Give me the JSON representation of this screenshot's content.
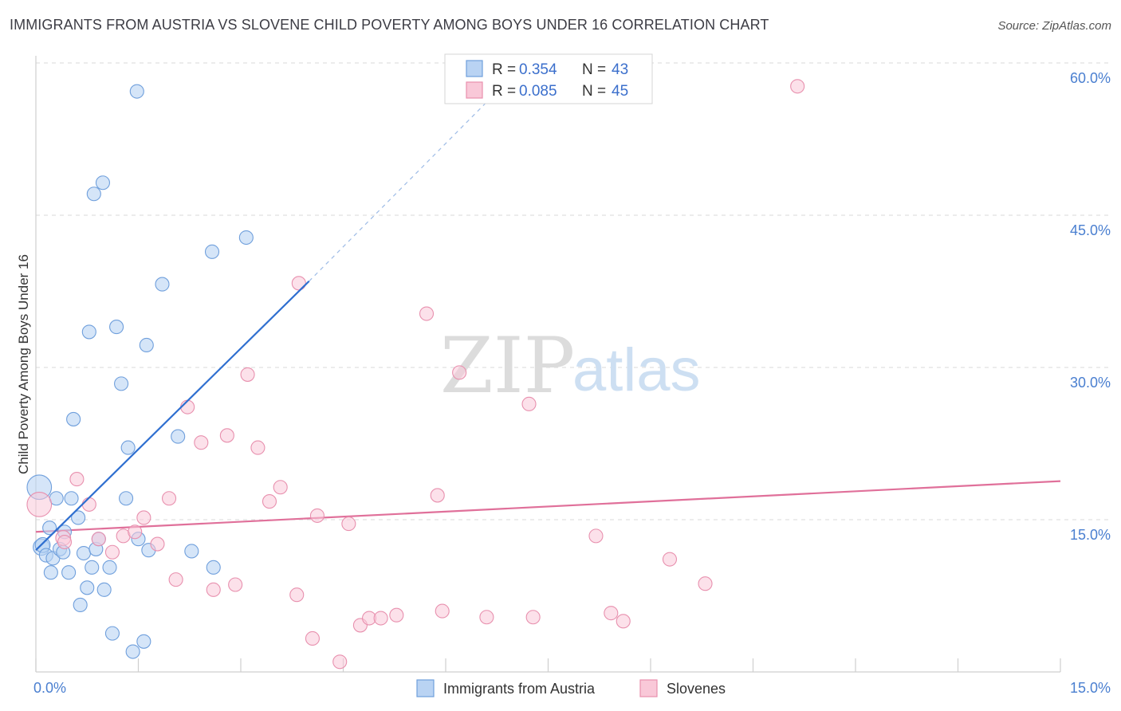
{
  "header": {
    "title": "IMMIGRANTS FROM AUSTRIA VS SLOVENE CHILD POVERTY AMONG BOYS UNDER 16 CORRELATION CHART",
    "source": "Source: ZipAtlas.com"
  },
  "watermark": {
    "zip": "ZIP",
    "atlas": "atlas"
  },
  "colors": {
    "blue_fill": "#b9d3f3",
    "blue_stroke": "#6f9fdc",
    "blue_line": "#2f6fd0",
    "pink_fill": "#f9c8d8",
    "pink_stroke": "#e890ae",
    "pink_line": "#e0709a",
    "grid": "#d9d9d9",
    "axis_text": "#4a7fd0"
  },
  "stats": {
    "r_label": "R =",
    "n_label": "N =",
    "austria": {
      "r": "0.354",
      "n": "43"
    },
    "slovenes": {
      "r": "0.085",
      "n": "45"
    }
  },
  "chart_data": {
    "type": "scatter",
    "title": "IMMIGRANTS FROM AUSTRIA VS SLOVENE CHILD POVERTY AMONG BOYS UNDER 16 CORRELATION CHART",
    "ylabel": "Child Poverty Among Boys Under 16",
    "xlabel": "",
    "xlim": [
      0,
      15
    ],
    "ylim": [
      0,
      60
    ],
    "x_tick_labels": [
      "0.0%",
      "15.0%"
    ],
    "y_ticks": [
      15,
      30,
      45,
      60
    ],
    "y_tick_labels": [
      "15.0%",
      "30.0%",
      "45.0%",
      "60.0%"
    ],
    "legend": [
      "Immigrants from Austria",
      "Slovenes"
    ],
    "series": [
      {
        "name": "Immigrants from Austria",
        "points": [
          [
            0.05,
            18.2,
            18
          ],
          [
            0.08,
            12.3,
            12
          ],
          [
            0.1,
            12.5,
            11
          ],
          [
            0.15,
            11.5,
            10
          ],
          [
            0.2,
            14.2,
            10
          ],
          [
            0.22,
            9.8,
            10
          ],
          [
            0.25,
            11.2,
            10
          ],
          [
            0.3,
            17.1,
            10
          ],
          [
            0.35,
            12.1,
            10
          ],
          [
            0.4,
            11.8,
            10
          ],
          [
            0.42,
            13.8,
            10
          ],
          [
            0.48,
            9.8,
            10
          ],
          [
            0.52,
            17.1,
            10
          ],
          [
            0.55,
            24.9,
            10
          ],
          [
            0.62,
            15.2,
            10
          ],
          [
            0.65,
            6.6,
            10
          ],
          [
            0.7,
            11.7,
            10
          ],
          [
            0.75,
            8.3,
            10
          ],
          [
            0.78,
            33.5,
            10
          ],
          [
            0.82,
            10.3,
            10
          ],
          [
            0.85,
            47.1,
            10
          ],
          [
            0.88,
            12.1,
            10
          ],
          [
            0.92,
            13.1,
            10
          ],
          [
            0.98,
            48.2,
            10
          ],
          [
            1.0,
            8.1,
            10
          ],
          [
            1.08,
            10.3,
            10
          ],
          [
            1.12,
            3.8,
            10
          ],
          [
            1.18,
            34.0,
            10
          ],
          [
            1.25,
            28.4,
            10
          ],
          [
            1.32,
            17.1,
            10
          ],
          [
            1.35,
            22.1,
            10
          ],
          [
            1.42,
            2.0,
            10
          ],
          [
            1.48,
            57.2,
            10
          ],
          [
            1.5,
            13.1,
            10
          ],
          [
            1.58,
            3.0,
            10
          ],
          [
            1.62,
            32.2,
            10
          ],
          [
            1.65,
            12.0,
            10
          ],
          [
            1.85,
            38.2,
            10
          ],
          [
            2.08,
            23.2,
            10
          ],
          [
            2.28,
            11.9,
            10
          ],
          [
            2.58,
            41.4,
            10
          ],
          [
            2.6,
            10.3,
            10
          ],
          [
            3.08,
            42.8,
            10
          ]
        ],
        "trend": {
          "from": [
            0.0,
            12.0
          ],
          "to": [
            4.0,
            38.5
          ],
          "dashed_to": [
            6.8,
            57.5
          ]
        }
      },
      {
        "name": "Slovenes",
        "points": [
          [
            0.05,
            16.5,
            18
          ],
          [
            0.4,
            13.2,
            11
          ],
          [
            0.42,
            12.8,
            10
          ],
          [
            0.6,
            19.0,
            10
          ],
          [
            0.78,
            16.5,
            10
          ],
          [
            0.92,
            13.1,
            10
          ],
          [
            1.12,
            11.8,
            10
          ],
          [
            1.28,
            13.4,
            10
          ],
          [
            1.45,
            13.8,
            10
          ],
          [
            1.58,
            15.2,
            10
          ],
          [
            1.78,
            12.6,
            10
          ],
          [
            1.95,
            17.1,
            10
          ],
          [
            2.05,
            9.1,
            10
          ],
          [
            2.22,
            26.1,
            10
          ],
          [
            2.42,
            22.6,
            10
          ],
          [
            2.6,
            8.1,
            10
          ],
          [
            2.8,
            23.3,
            10
          ],
          [
            2.92,
            8.6,
            10
          ],
          [
            3.1,
            29.3,
            10
          ],
          [
            3.25,
            22.1,
            10
          ],
          [
            3.42,
            16.8,
            10
          ],
          [
            3.58,
            18.2,
            10
          ],
          [
            3.82,
            7.6,
            10
          ],
          [
            3.85,
            38.3,
            10
          ],
          [
            4.05,
            3.3,
            10
          ],
          [
            4.12,
            15.4,
            10
          ],
          [
            4.45,
            1.0,
            10
          ],
          [
            4.58,
            14.6,
            10
          ],
          [
            4.75,
            4.6,
            10
          ],
          [
            4.88,
            5.3,
            10
          ],
          [
            5.05,
            5.3,
            10
          ],
          [
            5.28,
            5.6,
            10
          ],
          [
            5.72,
            35.3,
            10
          ],
          [
            5.88,
            17.4,
            10
          ],
          [
            5.95,
            6.0,
            10
          ],
          [
            6.2,
            29.5,
            10
          ],
          [
            6.6,
            5.4,
            10
          ],
          [
            7.22,
            26.4,
            10
          ],
          [
            7.28,
            5.4,
            10
          ],
          [
            8.2,
            13.4,
            10
          ],
          [
            8.42,
            5.8,
            10
          ],
          [
            8.6,
            5.0,
            10
          ],
          [
            9.28,
            11.1,
            10
          ],
          [
            9.8,
            8.7,
            10
          ],
          [
            11.15,
            57.7,
            10
          ]
        ],
        "trend": {
          "from": [
            0.0,
            13.8
          ],
          "to": [
            15.0,
            18.8
          ]
        }
      }
    ]
  }
}
